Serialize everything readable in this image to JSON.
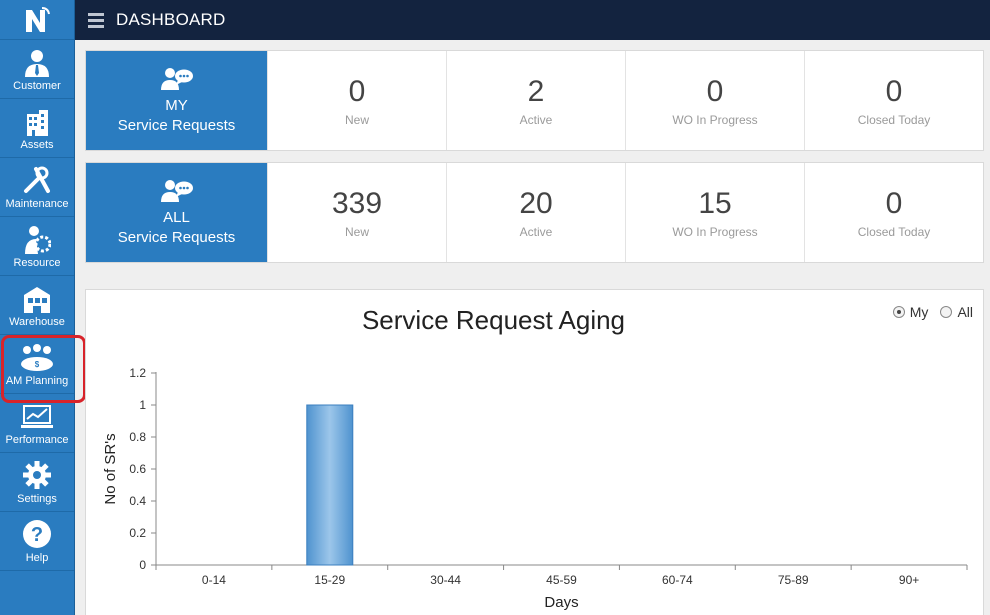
{
  "topbar": {
    "title": "DASHBOARD"
  },
  "sidebar": {
    "items": [
      {
        "label": "Customer",
        "icon": "customer-icon"
      },
      {
        "label": "Assets",
        "icon": "building-icon"
      },
      {
        "label": "Maintenance",
        "icon": "wrench-icon"
      },
      {
        "label": "Resource",
        "icon": "resource-icon"
      },
      {
        "label": "Warehouse",
        "icon": "warehouse-icon"
      },
      {
        "label": "AM Planning",
        "icon": "planning-icon",
        "highlighted": true
      },
      {
        "label": "Performance",
        "icon": "performance-icon"
      },
      {
        "label": "Settings",
        "icon": "gear-icon"
      },
      {
        "label": "Help",
        "icon": "help-icon"
      }
    ]
  },
  "my_requests": {
    "label_line1": "MY",
    "label_line2": "Service Requests",
    "stats": [
      {
        "value": "0",
        "label": "New"
      },
      {
        "value": "2",
        "label": "Active"
      },
      {
        "value": "0",
        "label": "WO In Progress"
      },
      {
        "value": "0",
        "label": "Closed Today"
      }
    ]
  },
  "all_requests": {
    "label_line1": "ALL",
    "label_line2": "Service Requests",
    "stats": [
      {
        "value": "339",
        "label": "New"
      },
      {
        "value": "20",
        "label": "Active"
      },
      {
        "value": "15",
        "label": "WO In Progress"
      },
      {
        "value": "0",
        "label": "Closed Today"
      }
    ]
  },
  "filter": {
    "option_my": "My",
    "option_all": "All",
    "selected": "My"
  },
  "colors": {
    "accent": "#2a7cc0",
    "topbar": "#13233f",
    "bar": "#6aa6d8"
  },
  "chart_data": {
    "type": "bar",
    "title": "Service Request Aging",
    "xlabel": "Days",
    "ylabel": "No of SR's",
    "categories": [
      "0-14",
      "15-29",
      "30-44",
      "45-59",
      "60-74",
      "75-89",
      "90+"
    ],
    "values": [
      0,
      1,
      0,
      0,
      0,
      0,
      0
    ],
    "ylim": [
      0,
      1.2
    ],
    "yticks": [
      "0",
      "0.2",
      "0.4",
      "0.6",
      "0.8",
      "1",
      "1.2"
    ],
    "grid": false,
    "legend": "none"
  }
}
